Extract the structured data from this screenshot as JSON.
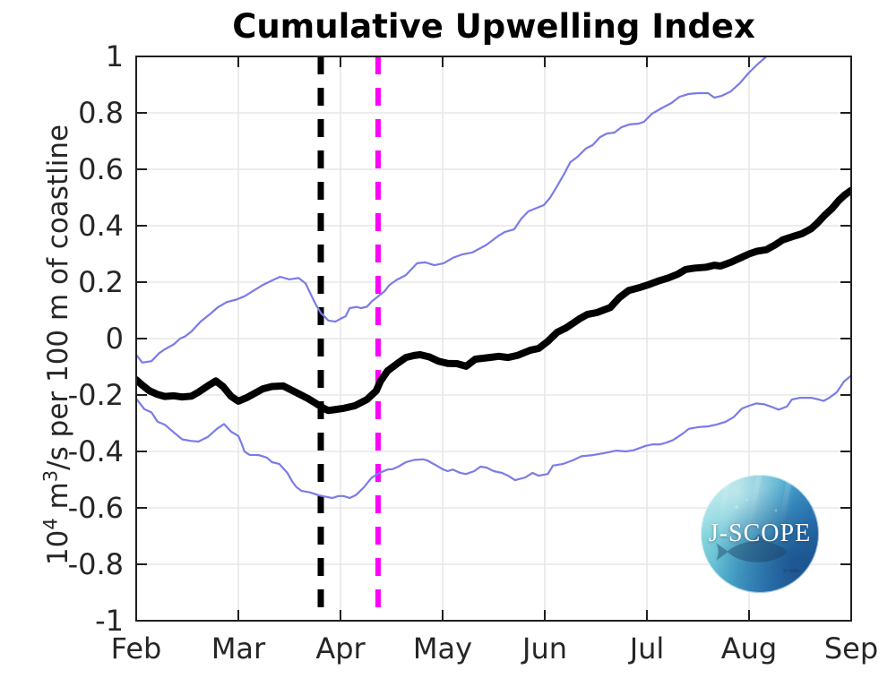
{
  "chart_data": {
    "type": "line",
    "title": "Cumulative Upwelling Index",
    "ylabel_plain": "10^4 m^3/s per 100 m of coastline",
    "ylabel_parts": {
      "p1": "10",
      "s1": "4",
      "p2": " m",
      "s2": "3",
      "p3": "/s per 100 m of coastline"
    },
    "grid": true,
    "x_axis": {
      "tick_labels": [
        "Feb",
        "Mar",
        "Apr",
        "May",
        "Jun",
        "Jul",
        "Aug",
        "Sep"
      ],
      "tick_positions_months": [
        0,
        1,
        2,
        3,
        4,
        5,
        6,
        7
      ],
      "range_months": [
        0,
        7
      ]
    },
    "y_axis": {
      "tick_values": [
        -1,
        -0.8,
        -0.6,
        -0.4,
        -0.2,
        0,
        0.2,
        0.4,
        0.6,
        0.8,
        1
      ],
      "tick_labels": [
        "-1",
        "-0.8",
        "-0.6",
        "-0.4",
        "-0.2",
        "0",
        "0.2",
        "0.4",
        "0.6",
        "0.8",
        "1"
      ],
      "range": [
        -1,
        1
      ]
    },
    "series": [
      {
        "name": "upper-uncertainty-line",
        "description": "thin blue upper bound line",
        "color": "#7b7be8",
        "width": 2.2,
        "style": "solid",
        "points": [
          [
            0.0,
            -0.057
          ],
          [
            0.06,
            -0.085
          ],
          [
            0.15,
            -0.08
          ],
          [
            0.22,
            -0.053
          ],
          [
            0.28,
            -0.038
          ],
          [
            0.37,
            -0.02
          ],
          [
            0.43,
            0.0
          ],
          [
            0.48,
            0.008
          ],
          [
            0.54,
            0.025
          ],
          [
            0.63,
            0.06
          ],
          [
            0.72,
            0.086
          ],
          [
            0.8,
            0.111
          ],
          [
            0.89,
            0.13
          ],
          [
            0.98,
            0.138
          ],
          [
            1.06,
            0.15
          ],
          [
            1.15,
            0.17
          ],
          [
            1.24,
            0.19
          ],
          [
            1.33,
            0.206
          ],
          [
            1.41,
            0.219
          ],
          [
            1.5,
            0.21
          ],
          [
            1.59,
            0.215
          ],
          [
            1.66,
            0.195
          ],
          [
            1.72,
            0.149
          ],
          [
            1.76,
            0.12
          ],
          [
            1.81,
            0.09
          ],
          [
            1.85,
            0.076
          ],
          [
            1.88,
            0.064
          ],
          [
            1.95,
            0.06
          ],
          [
            2.0,
            0.07
          ],
          [
            2.05,
            0.079
          ],
          [
            2.09,
            0.108
          ],
          [
            2.16,
            0.112
          ],
          [
            2.2,
            0.108
          ],
          [
            2.26,
            0.113
          ],
          [
            2.31,
            0.133
          ],
          [
            2.37,
            0.15
          ],
          [
            2.43,
            0.167
          ],
          [
            2.48,
            0.19
          ],
          [
            2.55,
            0.208
          ],
          [
            2.64,
            0.225
          ],
          [
            2.75,
            0.267
          ],
          [
            2.83,
            0.27
          ],
          [
            2.92,
            0.26
          ],
          [
            3.01,
            0.267
          ],
          [
            3.1,
            0.286
          ],
          [
            3.19,
            0.298
          ],
          [
            3.29,
            0.305
          ],
          [
            3.42,
            0.33
          ],
          [
            3.49,
            0.349
          ],
          [
            3.55,
            0.365
          ],
          [
            3.61,
            0.378
          ],
          [
            3.7,
            0.387
          ],
          [
            3.77,
            0.425
          ],
          [
            3.84,
            0.451
          ],
          [
            3.9,
            0.46
          ],
          [
            3.99,
            0.473
          ],
          [
            4.05,
            0.498
          ],
          [
            4.12,
            0.54
          ],
          [
            4.19,
            0.584
          ],
          [
            4.25,
            0.625
          ],
          [
            4.32,
            0.644
          ],
          [
            4.4,
            0.673
          ],
          [
            4.47,
            0.686
          ],
          [
            4.54,
            0.714
          ],
          [
            4.61,
            0.727
          ],
          [
            4.68,
            0.73
          ],
          [
            4.75,
            0.749
          ],
          [
            4.83,
            0.759
          ],
          [
            4.92,
            0.762
          ],
          [
            4.97,
            0.768
          ],
          [
            5.05,
            0.797
          ],
          [
            5.14,
            0.816
          ],
          [
            5.24,
            0.835
          ],
          [
            5.32,
            0.857
          ],
          [
            5.41,
            0.867
          ],
          [
            5.5,
            0.87
          ],
          [
            5.6,
            0.87
          ],
          [
            5.66,
            0.854
          ],
          [
            5.73,
            0.86
          ],
          [
            5.82,
            0.876
          ],
          [
            5.91,
            0.905
          ],
          [
            6.0,
            0.943
          ],
          [
            6.08,
            0.971
          ],
          [
            6.17,
            1.0
          ],
          [
            6.22,
            1.02
          ]
        ]
      },
      {
        "name": "lower-uncertainty-line",
        "description": "thin blue lower bound line",
        "color": "#7b7be8",
        "width": 2.2,
        "style": "solid",
        "points": [
          [
            0.0,
            -0.213
          ],
          [
            0.08,
            -0.25
          ],
          [
            0.15,
            -0.262
          ],
          [
            0.21,
            -0.295
          ],
          [
            0.28,
            -0.305
          ],
          [
            0.37,
            -0.333
          ],
          [
            0.45,
            -0.357
          ],
          [
            0.54,
            -0.363
          ],
          [
            0.61,
            -0.365
          ],
          [
            0.7,
            -0.349
          ],
          [
            0.79,
            -0.32
          ],
          [
            0.86,
            -0.303
          ],
          [
            0.93,
            -0.33
          ],
          [
            1.0,
            -0.345
          ],
          [
            1.03,
            -0.37
          ],
          [
            1.06,
            -0.4
          ],
          [
            1.11,
            -0.412
          ],
          [
            1.2,
            -0.413
          ],
          [
            1.28,
            -0.422
          ],
          [
            1.33,
            -0.438
          ],
          [
            1.4,
            -0.444
          ],
          [
            1.48,
            -0.476
          ],
          [
            1.53,
            -0.508
          ],
          [
            1.57,
            -0.527
          ],
          [
            1.62,
            -0.54
          ],
          [
            1.7,
            -0.545
          ],
          [
            1.79,
            -0.556
          ],
          [
            1.85,
            -0.56
          ],
          [
            1.92,
            -0.565
          ],
          [
            1.98,
            -0.558
          ],
          [
            2.03,
            -0.558
          ],
          [
            2.09,
            -0.565
          ],
          [
            2.15,
            -0.555
          ],
          [
            2.23,
            -0.527
          ],
          [
            2.3,
            -0.495
          ],
          [
            2.37,
            -0.478
          ],
          [
            2.46,
            -0.464
          ],
          [
            2.51,
            -0.463
          ],
          [
            2.57,
            -0.453
          ],
          [
            2.64,
            -0.438
          ],
          [
            2.72,
            -0.43
          ],
          [
            2.81,
            -0.428
          ],
          [
            2.85,
            -0.432
          ],
          [
            2.93,
            -0.448
          ],
          [
            3.0,
            -0.463
          ],
          [
            3.05,
            -0.47
          ],
          [
            3.1,
            -0.464
          ],
          [
            3.17,
            -0.476
          ],
          [
            3.23,
            -0.48
          ],
          [
            3.31,
            -0.47
          ],
          [
            3.37,
            -0.454
          ],
          [
            3.43,
            -0.457
          ],
          [
            3.5,
            -0.47
          ],
          [
            3.58,
            -0.476
          ],
          [
            3.64,
            -0.486
          ],
          [
            3.71,
            -0.502
          ],
          [
            3.81,
            -0.492
          ],
          [
            3.88,
            -0.476
          ],
          [
            3.94,
            -0.486
          ],
          [
            4.03,
            -0.48
          ],
          [
            4.08,
            -0.45
          ],
          [
            4.18,
            -0.444
          ],
          [
            4.27,
            -0.432
          ],
          [
            4.36,
            -0.417
          ],
          [
            4.47,
            -0.413
          ],
          [
            4.58,
            -0.406
          ],
          [
            4.7,
            -0.397
          ],
          [
            4.79,
            -0.4
          ],
          [
            4.87,
            -0.396
          ],
          [
            4.99,
            -0.38
          ],
          [
            5.06,
            -0.375
          ],
          [
            5.13,
            -0.375
          ],
          [
            5.19,
            -0.369
          ],
          [
            5.26,
            -0.359
          ],
          [
            5.35,
            -0.337
          ],
          [
            5.41,
            -0.32
          ],
          [
            5.5,
            -0.314
          ],
          [
            5.6,
            -0.311
          ],
          [
            5.68,
            -0.305
          ],
          [
            5.77,
            -0.295
          ],
          [
            5.85,
            -0.278
          ],
          [
            5.93,
            -0.248
          ],
          [
            6.0,
            -0.238
          ],
          [
            6.07,
            -0.23
          ],
          [
            6.15,
            -0.233
          ],
          [
            6.22,
            -0.242
          ],
          [
            6.29,
            -0.252
          ],
          [
            6.37,
            -0.241
          ],
          [
            6.42,
            -0.216
          ],
          [
            6.5,
            -0.21
          ],
          [
            6.61,
            -0.21
          ],
          [
            6.68,
            -0.216
          ],
          [
            6.73,
            -0.221
          ],
          [
            6.79,
            -0.209
          ],
          [
            6.86,
            -0.19
          ],
          [
            6.93,
            -0.152
          ],
          [
            7.0,
            -0.131
          ]
        ]
      },
      {
        "name": "mean-index-line",
        "description": "thick black cumulative upwelling index line",
        "color": "#000000",
        "width": 8,
        "style": "solid",
        "points": [
          [
            0.0,
            -0.146
          ],
          [
            0.06,
            -0.165
          ],
          [
            0.13,
            -0.185
          ],
          [
            0.21,
            -0.198
          ],
          [
            0.28,
            -0.205
          ],
          [
            0.37,
            -0.203
          ],
          [
            0.45,
            -0.207
          ],
          [
            0.54,
            -0.204
          ],
          [
            0.61,
            -0.19
          ],
          [
            0.7,
            -0.168
          ],
          [
            0.78,
            -0.15
          ],
          [
            0.85,
            -0.17
          ],
          [
            0.93,
            -0.205
          ],
          [
            1.0,
            -0.222
          ],
          [
            1.08,
            -0.21
          ],
          [
            1.15,
            -0.196
          ],
          [
            1.24,
            -0.178
          ],
          [
            1.33,
            -0.17
          ],
          [
            1.44,
            -0.168
          ],
          [
            1.56,
            -0.19
          ],
          [
            1.68,
            -0.212
          ],
          [
            1.76,
            -0.23
          ],
          [
            1.83,
            -0.246
          ],
          [
            1.88,
            -0.255
          ],
          [
            1.94,
            -0.252
          ],
          [
            2.02,
            -0.248
          ],
          [
            2.14,
            -0.238
          ],
          [
            2.26,
            -0.216
          ],
          [
            2.35,
            -0.185
          ],
          [
            2.39,
            -0.152
          ],
          [
            2.46,
            -0.115
          ],
          [
            2.55,
            -0.09
          ],
          [
            2.64,
            -0.067
          ],
          [
            2.72,
            -0.06
          ],
          [
            2.78,
            -0.057
          ],
          [
            2.87,
            -0.065
          ],
          [
            2.96,
            -0.08
          ],
          [
            3.05,
            -0.088
          ],
          [
            3.14,
            -0.089
          ],
          [
            3.23,
            -0.098
          ],
          [
            3.32,
            -0.073
          ],
          [
            3.46,
            -0.067
          ],
          [
            3.55,
            -0.063
          ],
          [
            3.64,
            -0.067
          ],
          [
            3.73,
            -0.06
          ],
          [
            3.86,
            -0.041
          ],
          [
            3.94,
            -0.035
          ],
          [
            4.03,
            -0.01
          ],
          [
            4.12,
            0.022
          ],
          [
            4.21,
            0.038
          ],
          [
            4.34,
            0.07
          ],
          [
            4.42,
            0.086
          ],
          [
            4.51,
            0.092
          ],
          [
            4.64,
            0.11
          ],
          [
            4.73,
            0.145
          ],
          [
            4.82,
            0.17
          ],
          [
            4.92,
            0.18
          ],
          [
            5.01,
            0.19
          ],
          [
            5.12,
            0.205
          ],
          [
            5.21,
            0.215
          ],
          [
            5.3,
            0.228
          ],
          [
            5.38,
            0.245
          ],
          [
            5.47,
            0.25
          ],
          [
            5.58,
            0.253
          ],
          [
            5.66,
            0.26
          ],
          [
            5.72,
            0.257
          ],
          [
            5.82,
            0.27
          ],
          [
            5.91,
            0.285
          ],
          [
            6.0,
            0.3
          ],
          [
            6.08,
            0.31
          ],
          [
            6.17,
            0.315
          ],
          [
            6.26,
            0.333
          ],
          [
            6.33,
            0.35
          ],
          [
            6.43,
            0.362
          ],
          [
            6.52,
            0.372
          ],
          [
            6.61,
            0.39
          ],
          [
            6.67,
            0.41
          ],
          [
            6.74,
            0.437
          ],
          [
            6.81,
            0.46
          ],
          [
            6.88,
            0.49
          ],
          [
            6.94,
            0.51
          ],
          [
            7.0,
            0.525
          ]
        ]
      }
    ],
    "vlines": [
      {
        "name": "vertical-dashed-black",
        "x_months": 1.807,
        "color": "#000000",
        "width": 7,
        "dash": "20 15"
      },
      {
        "name": "vertical-dashed-magenta",
        "x_months": 2.368,
        "color": "#ff00ff",
        "width": 6,
        "dash": "20 15"
      }
    ],
    "colors": {
      "grid": "#e7e7e7",
      "axis": "#1f1f1f",
      "tick_text": "#262626",
      "blue_line": "#7b7be8",
      "magenta_line": "#ff00ff",
      "background": "#ffffff"
    }
  },
  "logo": {
    "text": "J-SCOPE"
  }
}
